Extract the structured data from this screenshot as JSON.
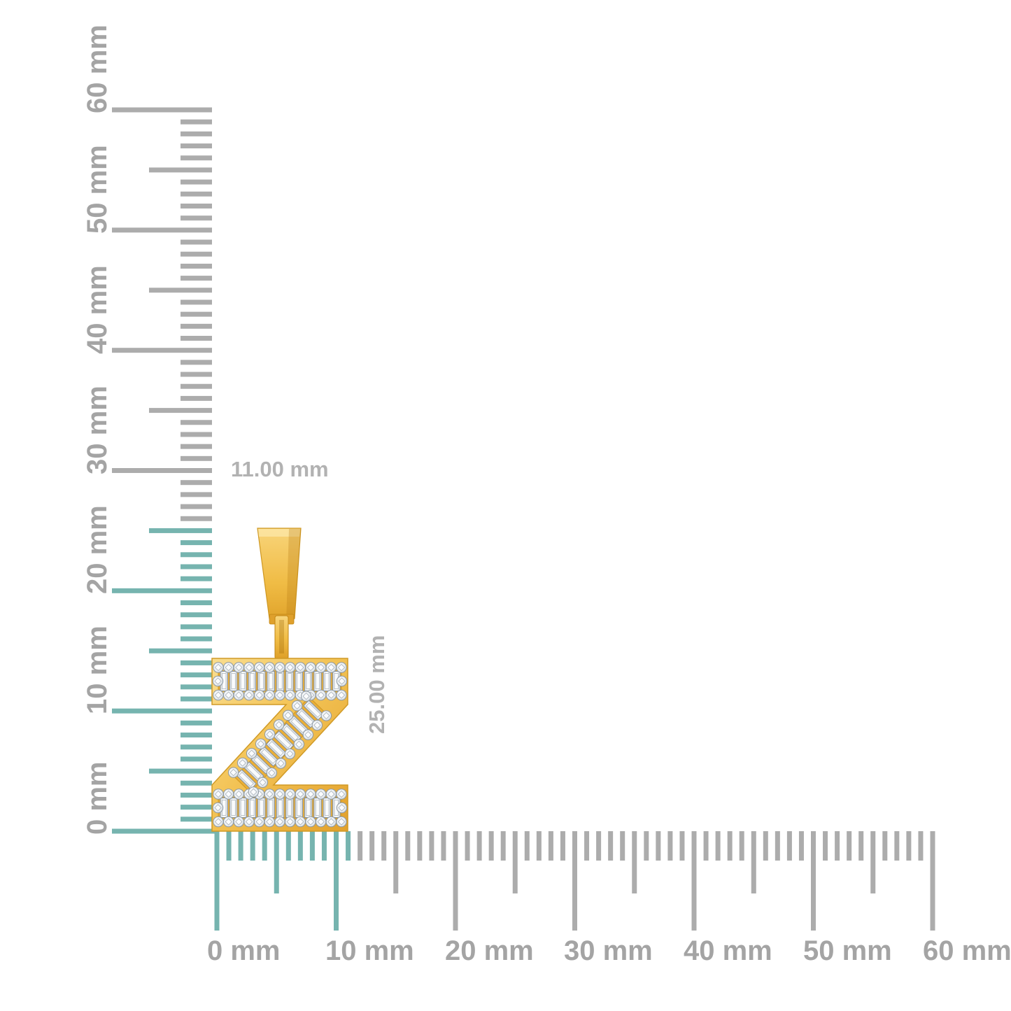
{
  "page": {
    "background": "#ffffff",
    "description": "Yellow gold letter Z initial pendant set with round and baguette diamonds, shown to scale against vertical and horizontal millimeter rulers"
  },
  "vertical_ruler": {
    "unit": "mm",
    "range_mm": [
      0,
      60
    ],
    "minor_step_mm": 1,
    "medium_step_mm": 5,
    "major_step_mm": 10,
    "highlighted_span_mm": 25,
    "highlight_tick_color": "#76B4AF",
    "tick_color": "#ACACAC",
    "label_color": "#A4A4A4",
    "labels": [
      "0 mm",
      "10 mm",
      "20 mm",
      "30 mm",
      "40 mm",
      "50 mm",
      "60 mm"
    ]
  },
  "horizontal_ruler": {
    "unit": "mm",
    "range_mm": [
      0,
      60
    ],
    "minor_step_mm": 1,
    "medium_step_mm": 5,
    "major_step_mm": 10,
    "highlighted_span_mm": 11,
    "highlight_tick_color": "#76B4AF",
    "tick_color": "#ACACAC",
    "label_color": "#A4A4A4",
    "labels": [
      "0 mm",
      "10 mm",
      "20 mm",
      "30 mm",
      "40 mm",
      "50 mm",
      "60 mm"
    ]
  },
  "dimension_labels": {
    "width": "11.00 mm",
    "height": "25.00 mm",
    "color": "#B2B2B2"
  },
  "pendant": {
    "letter": "Z",
    "metal": "yellow gold",
    "gold_light": "#F9DD8F",
    "gold_mid": "#F3C355",
    "gold_dark": "#E2A12C",
    "gold_edge": "#CE9722",
    "diamond_fill": "#EDF1F4",
    "diamond_edge": "#8E99A3"
  }
}
